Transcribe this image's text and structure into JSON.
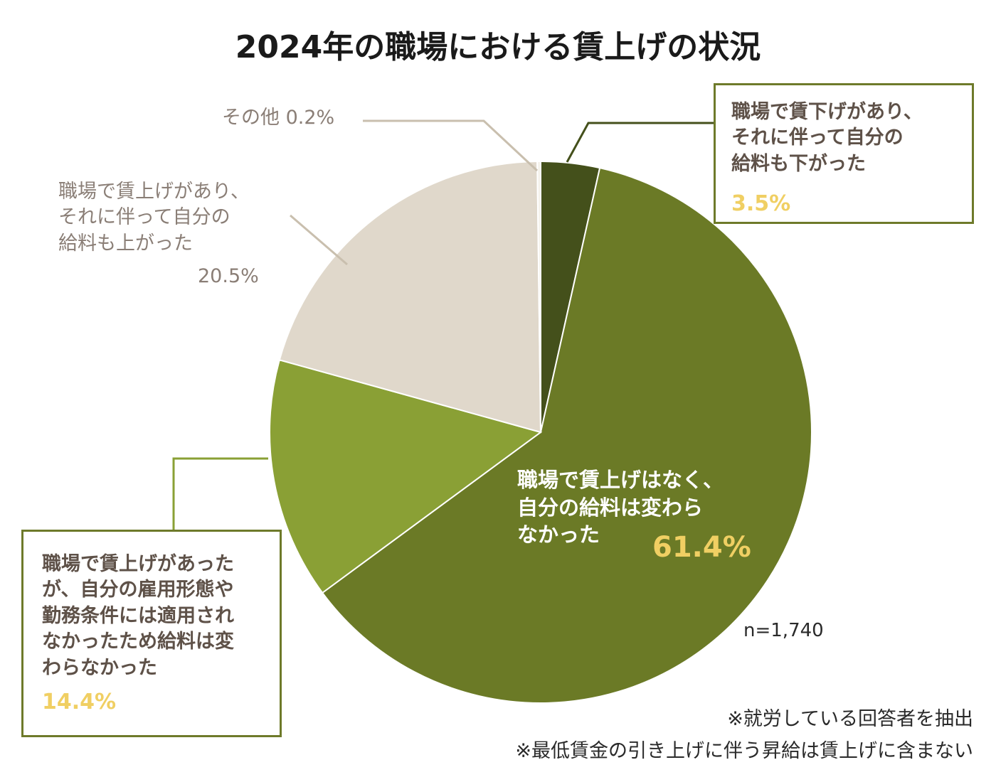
{
  "chart_data": {
    "type": "pie",
    "title": "2024年の職場における賃上げの状況",
    "slices": [
      {
        "label_lines": [
          "職場で賃下げがあり、",
          "それに伴って自分の",
          "給料も下がった"
        ],
        "value": 3.5,
        "pct_label": "3.5%",
        "color": "#44501b"
      },
      {
        "label_lines": [
          "職場で賃上げはなく、",
          "自分の給料は変わら",
          "なかった"
        ],
        "value": 61.4,
        "pct_label": "61.4%",
        "color": "#6b7a26"
      },
      {
        "label_lines": [
          "職場で賃上げがあった",
          "が、自分の雇用形態や",
          "勤務条件には適用され",
          "なかったため給料は変",
          "わらなかった"
        ],
        "value": 14.4,
        "pct_label": "14.4%",
        "color": "#8aa035"
      },
      {
        "label_lines": [
          "職場で賃上げがあり、",
          "それに伴って自分の",
          "給料も上がった"
        ],
        "value": 20.5,
        "pct_label": "20.5%",
        "color": "#e0d8cb"
      },
      {
        "label_lines": [
          "その他"
        ],
        "value": 0.2,
        "pct_label": "0.2%",
        "color": "#f4f1ea"
      }
    ],
    "sample_size": "n=1,740",
    "notes": [
      "※就労している回答者を抽出",
      "※最低賃金の引き上げに伴う昇給は賃上げに含まない"
    ],
    "line_color_dark": "#44501b",
    "line_color_mid": "#8aa035",
    "line_color_light": "#c9bfae"
  }
}
